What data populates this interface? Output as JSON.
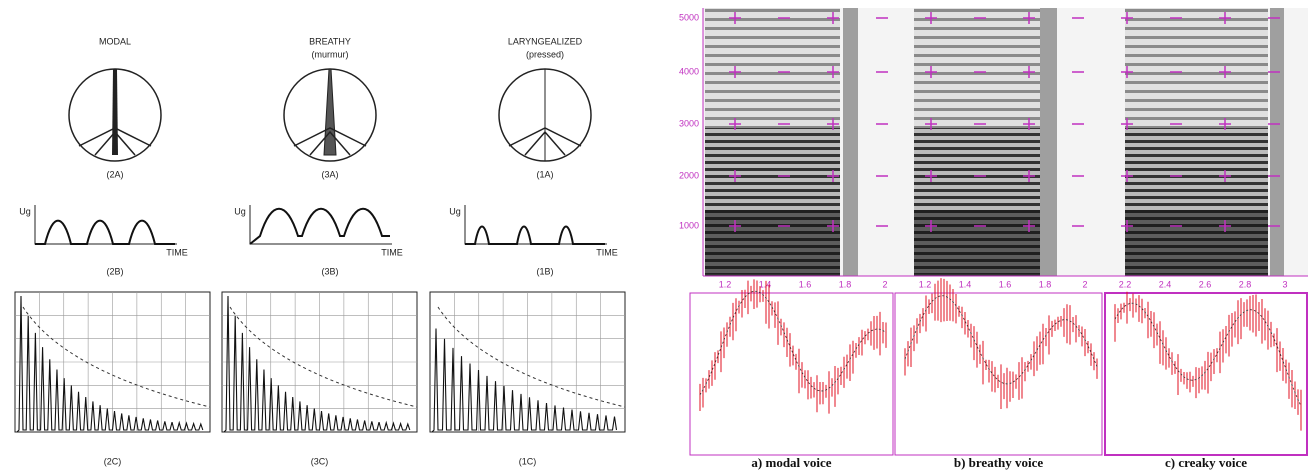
{
  "left": {
    "columns": [
      {
        "title": "MODAL",
        "glottis_label": "(2A)",
        "flow_label": "(2B)",
        "spectrum_label": "(2C)"
      },
      {
        "title": "BREATHY",
        "subtitle": "(murmur)",
        "glottis_label": "(3A)",
        "flow_label": "(3B)",
        "spectrum_label": "(3C)"
      },
      {
        "title": "LARYNGEALIZED",
        "subtitle": "(pressed)",
        "glottis_label": "(1A)",
        "flow_label": "(1B)",
        "spectrum_label": "(1C)"
      }
    ],
    "flow_y_label": "Ug",
    "flow_x_label": "TIME"
  },
  "right": {
    "frequency_ticks": [
      "5000",
      "4000",
      "3000",
      "2000",
      "1000"
    ],
    "time_ticks": [
      "1.2",
      "1.4",
      "1.6",
      "1.8",
      "2",
      "1.2",
      "1.4",
      "1.6",
      "1.8",
      "2",
      "2.2",
      "2.4",
      "2.6",
      "2.8",
      "3"
    ],
    "captions": [
      "a) modal voice",
      "b) breathy voice",
      "c) creaky voice"
    ]
  }
}
